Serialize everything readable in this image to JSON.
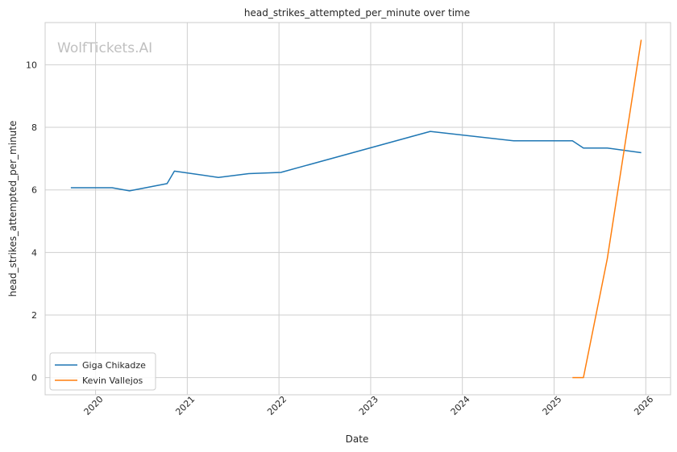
{
  "chart_data": {
    "type": "line",
    "title": "head_strikes_attempted_per_minute over time",
    "xlabel": "Date",
    "ylabel": "head_strikes_attempted_per_minute",
    "watermark": "WolfTickets.AI",
    "grid": true,
    "legend_position": "bottom-left",
    "xlim": [
      2019.45,
      2026.27
    ],
    "ylim": [
      -0.55,
      11.35
    ],
    "x_ticks": [
      2020,
      2021,
      2022,
      2023,
      2024,
      2025,
      2026
    ],
    "x_tick_labels": [
      "2020",
      "2021",
      "2022",
      "2023",
      "2024",
      "2025",
      "2026"
    ],
    "y_ticks": [
      0,
      2,
      4,
      6,
      8,
      10
    ],
    "y_tick_labels": [
      "0",
      "2",
      "4",
      "6",
      "8",
      "10"
    ],
    "series": [
      {
        "name": "Giga Chikadze",
        "color": "#1f77b4",
        "x": [
          2019.73,
          2020.18,
          2020.37,
          2020.78,
          2020.86,
          2021.34,
          2021.67,
          2022.02,
          2023.65,
          2024.56,
          2025.2,
          2025.32,
          2025.58,
          2025.95
        ],
        "y": [
          6.07,
          6.07,
          5.97,
          6.2,
          6.6,
          6.4,
          6.52,
          6.56,
          7.87,
          7.57,
          7.57,
          7.34,
          7.34,
          7.19
        ]
      },
      {
        "name": "Kevin Vallejos",
        "color": "#ff7f0e",
        "x": [
          2025.2,
          2025.32,
          2025.58,
          2025.95
        ],
        "y": [
          0.0,
          0.0,
          3.8,
          10.8
        ]
      }
    ]
  }
}
